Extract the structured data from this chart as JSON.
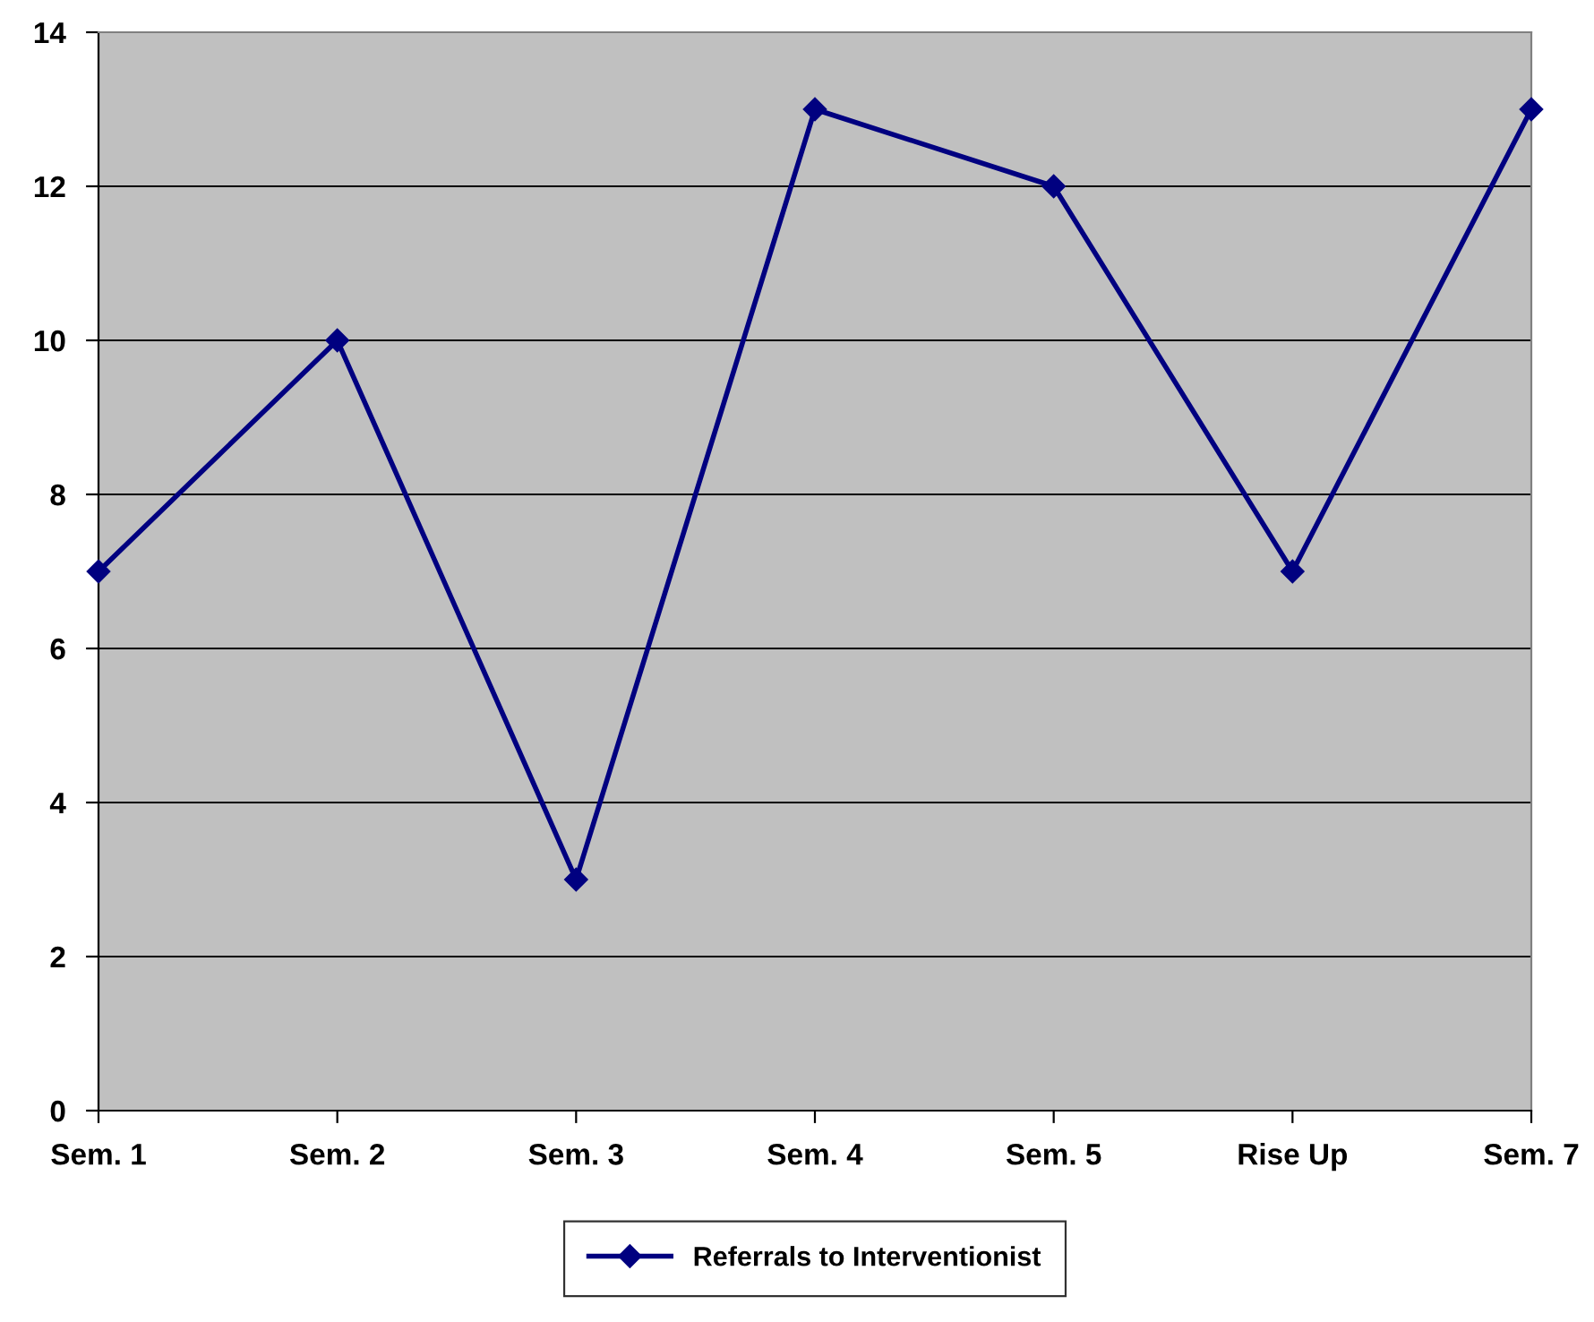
{
  "chart_data": {
    "type": "line",
    "categories": [
      "Sem. 1",
      "Sem. 2",
      "Sem. 3",
      "Sem. 4",
      "Sem. 5",
      "Rise Up",
      "Sem. 7"
    ],
    "series": [
      {
        "name": "Referrals to Interventionist",
        "color": "#000080",
        "values": [
          7,
          10,
          3,
          13,
          12,
          7,
          13
        ]
      }
    ],
    "ylim": [
      0,
      14
    ],
    "yticks": [
      0,
      2,
      4,
      6,
      8,
      10,
      12,
      14
    ],
    "grid": "y",
    "legend": "bottom",
    "marker": "diamond",
    "line_style": "solid"
  }
}
